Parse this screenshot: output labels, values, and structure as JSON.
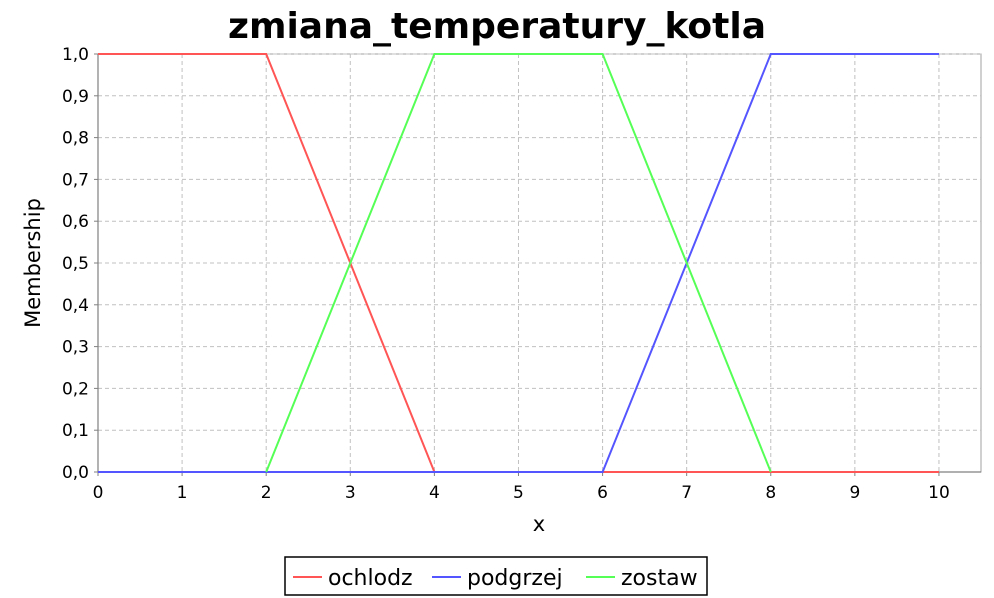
{
  "chart_data": {
    "type": "line",
    "title": "zmiana_temperatury_kotla",
    "xlabel": "x",
    "ylabel": "Membership",
    "xlim": [
      0,
      10.5
    ],
    "ylim": [
      0,
      1
    ],
    "x_ticks": [
      0,
      1,
      2,
      3,
      4,
      5,
      6,
      7,
      8,
      9,
      10
    ],
    "x_tick_labels": [
      "0",
      "1",
      "2",
      "3",
      "4",
      "5",
      "6",
      "7",
      "8",
      "9",
      "10"
    ],
    "y_ticks": [
      0,
      0.1,
      0.2,
      0.3,
      0.4,
      0.5,
      0.6,
      0.7,
      0.8,
      0.9,
      1.0
    ],
    "y_tick_labels": [
      "0,0",
      "0,1",
      "0,2",
      "0,3",
      "0,4",
      "0,5",
      "0,6",
      "0,7",
      "0,8",
      "0,9",
      "1,0"
    ],
    "grid": true,
    "legend_position": "bottom",
    "series": [
      {
        "name": "ochlodz",
        "color": "#ff5555",
        "x": [
          0,
          2,
          4,
          10
        ],
        "y": [
          1,
          1,
          0,
          0
        ]
      },
      {
        "name": "podgrzej",
        "color": "#5555ff",
        "x": [
          0,
          6,
          8,
          10
        ],
        "y": [
          0,
          0,
          1,
          1
        ]
      },
      {
        "name": "zostaw",
        "color": "#55ff55",
        "x": [
          2,
          4,
          6,
          8
        ],
        "y": [
          0,
          1,
          1,
          0
        ]
      }
    ]
  },
  "colors": {
    "plot_background": "#ffffff",
    "gridline": "#c0c0c0",
    "axis": "#808080"
  }
}
